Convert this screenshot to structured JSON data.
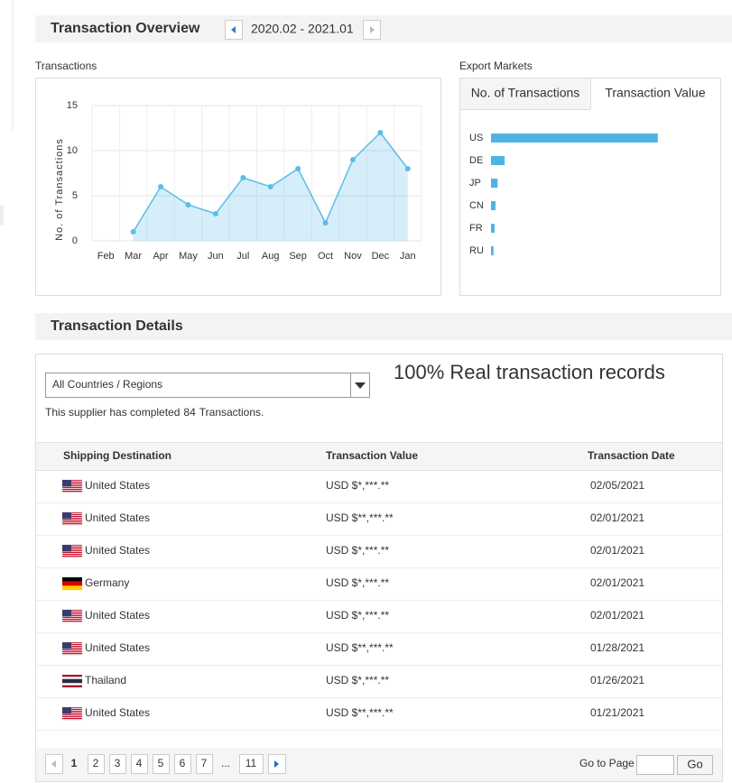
{
  "header": {
    "title": "Transaction Overview",
    "date_range": "2020.02 - 2021.01"
  },
  "chart_data": [
    {
      "type": "line",
      "title": "Transactions",
      "y_label": "No. of Transactions",
      "categories": [
        "Feb",
        "Mar",
        "Apr",
        "May",
        "Jun",
        "Jul",
        "Aug",
        "Sep",
        "Oct",
        "Nov",
        "Dec",
        "Jan"
      ],
      "values": [
        null,
        1,
        6,
        4,
        3,
        7,
        6,
        8,
        2,
        9,
        12,
        8
      ],
      "color": "#5bbde8",
      "fill": true,
      "ylim": [
        0,
        15
      ],
      "yticks": [
        0,
        5,
        10,
        15
      ],
      "grid": true
    },
    {
      "type": "bar",
      "orientation": "horizontal",
      "title": "Export Markets",
      "tabs": [
        "No. of Transactions",
        "Transaction Value"
      ],
      "active_tab": 1,
      "categories": [
        "US",
        "DE",
        "JP",
        "CN",
        "FR",
        "RU"
      ],
      "values": [
        3.3,
        0.27,
        0.13,
        0.09,
        0.07,
        0.05
      ],
      "color": "#4fb3e6",
      "xlim": [
        0,
        4
      ]
    }
  ],
  "details": {
    "title": "Transaction Details",
    "filter": "All Countries / Regions",
    "annotation": "100% Real transaction records",
    "summary": {
      "prefix": "This supplier has completed",
      "count": 84,
      "suffix": "Transactions."
    },
    "table": {
      "headers": [
        "Shipping Destination",
        "Transaction Value",
        "Transaction Date"
      ],
      "rows": [
        [
          "United States",
          "USD $*,***.**",
          "02/05/2021"
        ],
        [
          "United States",
          "USD $**,***.**",
          "02/01/2021"
        ],
        [
          "United States",
          "USD $*,***.**",
          "02/01/2021"
        ],
        [
          "Germany",
          "USD $*,***.**",
          "02/01/2021"
        ],
        [
          "United States",
          "USD $*,***.**",
          "02/01/2021"
        ],
        [
          "United States",
          "USD $**,***.**",
          "01/28/2021"
        ],
        [
          "Thailand",
          "USD $*,***.**",
          "01/26/2021"
        ],
        [
          "United States",
          "USD $**,***.**",
          "01/21/2021"
        ]
      ]
    },
    "pagination": {
      "pages": [
        1,
        2,
        3,
        4,
        5,
        6,
        7,
        "...",
        11
      ],
      "current": 1,
      "goto_label": "Go to Page",
      "go_button": "Go"
    }
  }
}
